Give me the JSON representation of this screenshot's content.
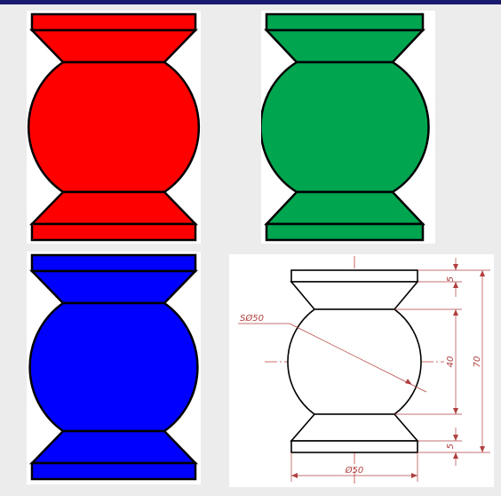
{
  "figure": {
    "colors": {
      "top_left": "#ff0000",
      "top_right": "#00a550",
      "bottom_left": "#0000ff",
      "outline": "#000000",
      "drawing_background": "#ffffff",
      "centerline": "#c04040",
      "dimension": "#b04040"
    },
    "drawing": {
      "sphere_label": "SØ50",
      "dim_top_band": "5",
      "dim_bottom_band": "5",
      "dim_middle": "40",
      "dim_total": "70",
      "dim_width": "Ø50"
    }
  }
}
